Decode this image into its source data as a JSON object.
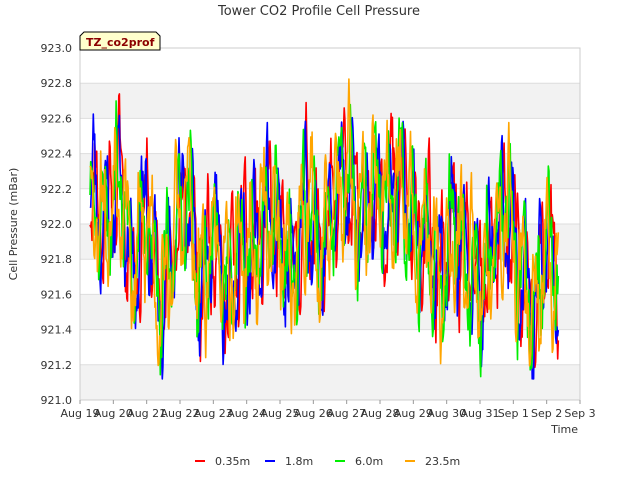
{
  "chart_data": {
    "type": "line",
    "title": "Tower CO2 Profile Cell Pressure",
    "xlabel": "Time",
    "ylabel": "Cell Pressure (mBar)",
    "station_badge": "TZ_co2prof",
    "ylim": [
      921.0,
      923.0
    ],
    "yticks": [
      "921.0",
      "921.2",
      "921.4",
      "921.6",
      "921.8",
      "922.0",
      "922.2",
      "922.4",
      "922.6",
      "922.8",
      "923.0"
    ],
    "xlim": [
      0,
      15
    ],
    "xticks": [
      "Aug 19",
      "Aug 20",
      "Aug 21",
      "Aug 22",
      "Aug 23",
      "Aug 24",
      "Aug 25",
      "Aug 26",
      "Aug 27",
      "Aug 28",
      "Aug 29",
      "Aug 30",
      "Aug 31",
      "Sep 1",
      "Sep 2",
      "Sep 3"
    ],
    "x_units": "days since Aug 19",
    "data_range": [
      0.3,
      14.35
    ],
    "daily_estimate": [
      {
        "day": 0.3,
        "value": 922.2
      },
      {
        "day": 0.8,
        "value": 922.0
      },
      {
        "day": 1.2,
        "value": 922.3
      },
      {
        "day": 1.6,
        "value": 921.7
      },
      {
        "day": 2.0,
        "value": 922.1
      },
      {
        "day": 2.4,
        "value": 921.5
      },
      {
        "day": 2.8,
        "value": 921.9
      },
      {
        "day": 3.2,
        "value": 922.2
      },
      {
        "day": 3.6,
        "value": 921.6
      },
      {
        "day": 4.0,
        "value": 922.0
      },
      {
        "day": 4.4,
        "value": 921.6
      },
      {
        "day": 4.8,
        "value": 921.9
      },
      {
        "day": 5.2,
        "value": 921.8
      },
      {
        "day": 5.6,
        "value": 922.1
      },
      {
        "day": 6.0,
        "value": 921.9
      },
      {
        "day": 6.4,
        "value": 921.7
      },
      {
        "day": 6.8,
        "value": 922.2
      },
      {
        "day": 7.2,
        "value": 921.8
      },
      {
        "day": 7.6,
        "value": 922.1
      },
      {
        "day": 8.0,
        "value": 922.3
      },
      {
        "day": 8.4,
        "value": 922.0
      },
      {
        "day": 8.8,
        "value": 922.2
      },
      {
        "day": 9.2,
        "value": 922.1
      },
      {
        "day": 9.6,
        "value": 922.3
      },
      {
        "day": 10.0,
        "value": 921.9
      },
      {
        "day": 10.4,
        "value": 922.0
      },
      {
        "day": 10.8,
        "value": 921.7
      },
      {
        "day": 11.2,
        "value": 922.0
      },
      {
        "day": 11.6,
        "value": 921.8
      },
      {
        "day": 12.0,
        "value": 921.6
      },
      {
        "day": 12.4,
        "value": 921.9
      },
      {
        "day": 12.8,
        "value": 922.1
      },
      {
        "day": 13.2,
        "value": 921.7
      },
      {
        "day": 13.6,
        "value": 921.5
      },
      {
        "day": 14.0,
        "value": 921.9
      },
      {
        "day": 14.35,
        "value": 921.6
      }
    ],
    "series": [
      {
        "name": "0.35m",
        "color": "#ff0000",
        "seed": 11
      },
      {
        "name": "1.8m",
        "color": "#0000ff",
        "seed": 23
      },
      {
        "name": "6.0m",
        "color": "#00ee00",
        "seed": 37
      },
      {
        "name": "23.5m",
        "color": "#ffa500",
        "seed": 53
      }
    ]
  }
}
